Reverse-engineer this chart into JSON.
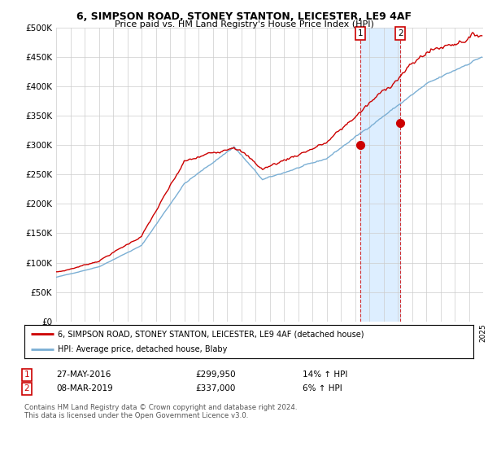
{
  "title": "6, SIMPSON ROAD, STONEY STANTON, LEICESTER, LE9 4AF",
  "subtitle": "Price paid vs. HM Land Registry's House Price Index (HPI)",
  "legend_line1": "6, SIMPSON ROAD, STONEY STANTON, LEICESTER, LE9 4AF (detached house)",
  "legend_line2": "HPI: Average price, detached house, Blaby",
  "transaction1_date": "27-MAY-2016",
  "transaction1_price": "£299,950",
  "transaction1_hpi": "14% ↑ HPI",
  "transaction2_date": "08-MAR-2019",
  "transaction2_price": "£337,000",
  "transaction2_hpi": "6% ↑ HPI",
  "footnote": "Contains HM Land Registry data © Crown copyright and database right 2024.\nThis data is licensed under the Open Government Licence v3.0.",
  "hpi_color": "#7bafd4",
  "price_color": "#cc0000",
  "marker1_x": 2016.38,
  "marker1_y": 299950,
  "marker2_x": 2019.18,
  "marker2_y": 337000,
  "vline_color": "#cc0000",
  "highlight_color": "#ddeeff",
  "xmin": 1995,
  "xmax": 2025,
  "ymin": 0,
  "ymax": 500000,
  "yticks": [
    0,
    50000,
    100000,
    150000,
    200000,
    250000,
    300000,
    350000,
    400000,
    450000,
    500000
  ],
  "background_color": "#ffffff",
  "grid_color": "#cccccc"
}
